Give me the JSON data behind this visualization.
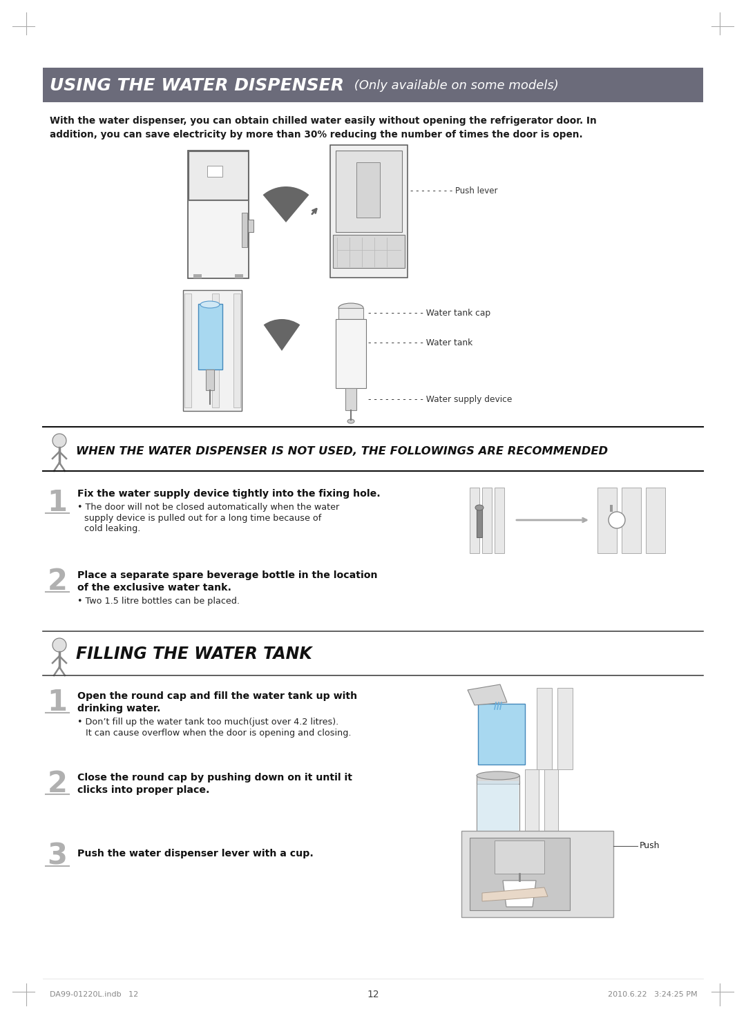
{
  "page_bg": "#ffffff",
  "page_width": 10.8,
  "page_height": 14.74,
  "header_bg": "#6b6b7a",
  "header_text": "USING THE WATER DISPENSER",
  "header_sub": " (Only available on some models)",
  "header_text_color": "#ffffff",
  "intro_line1": "With the water dispenser, you can obtain chilled water easily without opening the refrigerator door. In",
  "intro_line2": "addition, you can save electricity by more than 30% reducing the number of times the door is open.",
  "section2_title": "WHEN THE WATER DISPENSER IS NOT USED, THE FOLLOWINGS ARE RECOMMENDED",
  "section3_title": "FILLING THE WATER TANK",
  "page_number": "12",
  "footer_left": "DA99-01220L.indb   12",
  "footer_right": "2010.6.22   3:24:25 PM",
  "label_push_lever": "Push lever",
  "label_water_tank_cap": "Water tank cap",
  "label_water_tank": "Water tank",
  "label_water_supply": "Water supply device",
  "step1_nu_bold": "Fix the water supply device tightly into the fixing hole.",
  "step1_nu_b1": "The door will not be closed automatically when the water",
  "step1_nu_b2": "supply device is pulled out for a long time because of",
  "step1_nu_b3": "cold leaking.",
  "step2_nu_bold1": "Place a separate spare beverage bottle in the location",
  "step2_nu_bold2": "of the exclusive water tank.",
  "step2_nu_b1": "Two 1.5 litre bottles can be placed.",
  "step1_fill_bold1": "Open the round cap and fill the water tank up with",
  "step1_fill_bold2": "drinking water.",
  "step1_fill_b1": "• Don’t fill up the water tank too much(just over 4.2 litres).",
  "step1_fill_b2": "   It can cause overflow when the door is opening and closing.",
  "step2_fill_bold1": "Close the round cap by pushing down on it until it",
  "step2_fill_bold2": "clicks into proper place.",
  "step3_fill_bold": "Push the water dispenser lever with a cup.",
  "label_push": "Push"
}
